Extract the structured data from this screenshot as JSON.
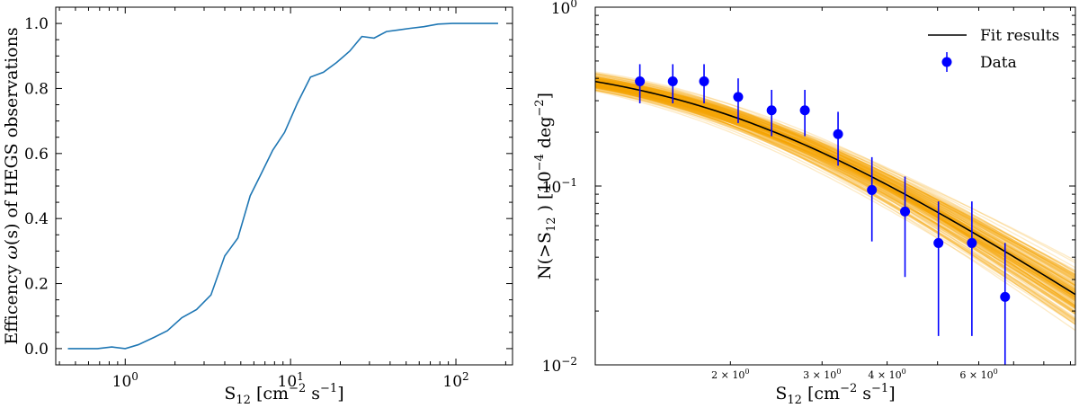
{
  "chart_data": [
    {
      "type": "line",
      "xscale": "log",
      "xlabel": {
        "main": "S",
        "sub": "12",
        "rest": " [cm",
        "sup1": "−2",
        "mid": " s",
        "sup2": "−1",
        "end": "]"
      },
      "ylabel": {
        "pre": "Efficency ",
        "var": "ω",
        "post": "(s) of HEGS observations"
      },
      "xlim": [
        0.38,
        220
      ],
      "ylim": [
        -0.05,
        1.05
      ],
      "yticks": [
        "0.0",
        "0.2",
        "0.4",
        "0.6",
        "0.8",
        "1.0"
      ],
      "ytick_values": [
        0.0,
        0.2,
        0.4,
        0.6,
        0.8,
        1.0
      ],
      "xticks": [
        {
          "value": 1,
          "base": "10",
          "exp": "0"
        },
        {
          "value": 10,
          "base": "10",
          "exp": "1"
        },
        {
          "value": 100,
          "base": "10",
          "exp": "2"
        }
      ],
      "line_color": "#1f77b4",
      "x": [
        0.45,
        0.55,
        0.68,
        0.83,
        1.0,
        1.2,
        1.5,
        1.8,
        2.2,
        2.7,
        3.3,
        4.0,
        4.8,
        5.7,
        6.6,
        7.8,
        9.2,
        11.0,
        13.2,
        15.8,
        19.0,
        22.8,
        27.0,
        32.0,
        38.0,
        45.0,
        53.0,
        64.0,
        78.0,
        95.0,
        115.0,
        140.0,
        180.0
      ],
      "y": [
        0.0,
        0.0,
        0.0,
        0.005,
        0.0,
        0.012,
        0.035,
        0.055,
        0.095,
        0.12,
        0.165,
        0.285,
        0.34,
        0.47,
        0.535,
        0.61,
        0.665,
        0.755,
        0.835,
        0.85,
        0.88,
        0.915,
        0.96,
        0.955,
        0.975,
        0.98,
        0.985,
        0.99,
        0.998,
        1.0,
        1.0,
        1.0,
        1.0
      ]
    },
    {
      "type": "line",
      "xscale": "log",
      "yscale": "log",
      "xlabel": {
        "main": "S",
        "sub": "12",
        "rest": " [cm",
        "sup1": "−2",
        "mid": " s",
        "sup2": "−1",
        "end": "]"
      },
      "ylabel": {
        "pre": "N(>S",
        "sub": "12",
        "mid": " ) [10",
        "sup1": "−4",
        "mid2": " deg",
        "sup2": "−2",
        "end": "]"
      },
      "xlim": [
        1.1,
        9.2
      ],
      "ylim": [
        0.01,
        1.0
      ],
      "yticks": [
        {
          "value": 1.0,
          "base": "10",
          "exp": "0"
        },
        {
          "value": 0.1,
          "base": "10",
          "exp": "−1"
        },
        {
          "value": 0.01,
          "base": "10",
          "exp": "−2"
        }
      ],
      "xticks": [
        {
          "value": 2,
          "mant": "2 × 10",
          "exp": "0"
        },
        {
          "value": 3,
          "mant": "3 × 10",
          "exp": "0"
        },
        {
          "value": 4,
          "mant": "4 × 10",
          "exp": "0"
        },
        {
          "value": 6,
          "mant": "6 × 10",
          "exp": "0"
        }
      ],
      "fit": {
        "name": "Fit results",
        "color": "#000000",
        "band_color": "#f5a300",
        "model": {
          "n0": 0.52,
          "s0": 1.9,
          "slope": 1.9
        }
      },
      "data": {
        "name": "Data",
        "color": "#0000ff",
        "points": [
          {
            "x": 1.34,
            "y": 0.385,
            "ylo": 0.29,
            "yhi": 0.48
          },
          {
            "x": 1.55,
            "y": 0.385,
            "ylo": 0.29,
            "yhi": 0.48
          },
          {
            "x": 1.78,
            "y": 0.385,
            "ylo": 0.29,
            "yhi": 0.48
          },
          {
            "x": 2.07,
            "y": 0.315,
            "ylo": 0.225,
            "yhi": 0.4
          },
          {
            "x": 2.4,
            "y": 0.265,
            "ylo": 0.19,
            "yhi": 0.345
          },
          {
            "x": 2.78,
            "y": 0.265,
            "ylo": 0.19,
            "yhi": 0.345
          },
          {
            "x": 3.22,
            "y": 0.195,
            "ylo": 0.13,
            "yhi": 0.26
          },
          {
            "x": 3.74,
            "y": 0.095,
            "ylo": 0.049,
            "yhi": 0.145
          },
          {
            "x": 4.33,
            "y": 0.072,
            "ylo": 0.031,
            "yhi": 0.113
          },
          {
            "x": 5.02,
            "y": 0.048,
            "ylo": 0.0145,
            "yhi": 0.082
          },
          {
            "x": 5.82,
            "y": 0.048,
            "ylo": 0.0145,
            "yhi": 0.082
          },
          {
            "x": 6.74,
            "y": 0.024,
            "ylo": 0.0095,
            "yhi": 0.048
          }
        ]
      }
    }
  ]
}
